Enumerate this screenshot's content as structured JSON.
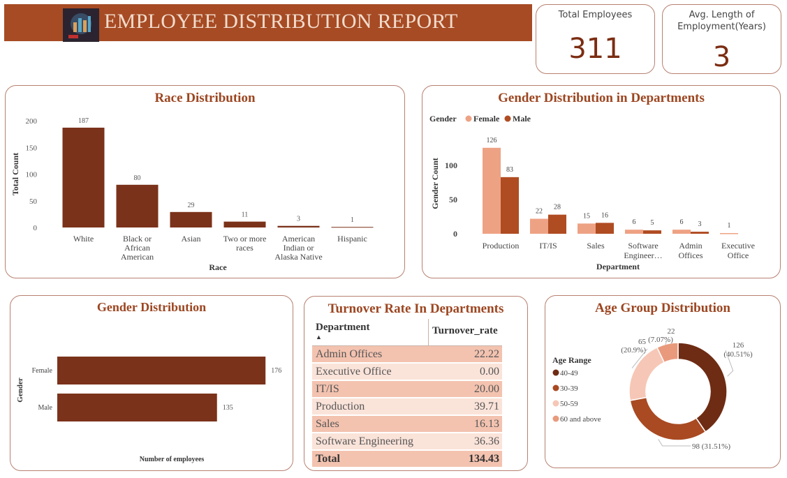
{
  "header": {
    "title": "EMPLOYEE DISTRIBUTION REPORT",
    "accent": "#a64b24"
  },
  "kpis": [
    {
      "label": "Total Employees",
      "value": "311"
    },
    {
      "label": "Avg. Length of Employment(Years)",
      "value": "3"
    }
  ],
  "chart_data": [
    {
      "type": "bar",
      "title": "Race Distribution",
      "xlabel": "Race",
      "ylabel": "Total Count",
      "categories": [
        [
          "White"
        ],
        [
          "Black or",
          "African",
          "American"
        ],
        [
          "Asian"
        ],
        [
          "Two or more",
          "races"
        ],
        [
          "American",
          "Indian or",
          "Alaska Native"
        ],
        [
          "Hispanic"
        ]
      ],
      "values": [
        187,
        80,
        29,
        11,
        3,
        1
      ],
      "ylim": [
        0,
        200
      ],
      "yticks": [
        0,
        50,
        100,
        150,
        200
      ],
      "color": "#7b321a"
    },
    {
      "type": "bar",
      "title": "Gender Distribution in Departments",
      "xlabel": "Department",
      "ylabel": "Gender Count",
      "legend_title": "Gender",
      "legend_placement": "top-left",
      "categories": [
        [
          "Production"
        ],
        [
          "IT/IS"
        ],
        [
          "Sales"
        ],
        [
          "Software",
          "Engineer…"
        ],
        [
          "Admin",
          "Offices"
        ],
        [
          "Executive",
          "Office"
        ]
      ],
      "series": [
        {
          "name": "Female",
          "color": "#eea284",
          "values": [
            126,
            22,
            15,
            6,
            6,
            1
          ]
        },
        {
          "name": "Male",
          "color": "#b04c22",
          "values": [
            83,
            28,
            16,
            5,
            3,
            null
          ]
        }
      ],
      "ylim": [
        0,
        135
      ],
      "yticks": [
        0,
        50,
        100
      ]
    },
    {
      "type": "bar",
      "orientation": "horizontal",
      "title": "Gender Distribution",
      "xlabel": "Number of employees",
      "ylabel": "Gender",
      "categories": [
        "Female",
        "Male"
      ],
      "values": [
        176,
        135
      ],
      "xlim": [
        0,
        180
      ],
      "color": "#7b321a"
    },
    {
      "type": "table",
      "title": "Turnover Rate In Departments",
      "columns": [
        "Department",
        "Turnover_rate"
      ],
      "rows": [
        [
          "Admin Offices",
          "22.22"
        ],
        [
          "Executive Office",
          "0.00"
        ],
        [
          "IT/IS",
          "20.00"
        ],
        [
          "Production",
          "39.71"
        ],
        [
          "Sales",
          "16.13"
        ],
        [
          "Software Engineering",
          "36.36"
        ]
      ],
      "total": [
        "Total",
        "134.43"
      ]
    },
    {
      "type": "pie",
      "donut": true,
      "title": "Age Group Distribution",
      "legend_title": "Age Range",
      "legend_placement": "left",
      "slices": [
        {
          "name": "40-49",
          "value": 126,
          "label": "126 (40.51%)",
          "color": "#6e2c14"
        },
        {
          "name": "30-39",
          "value": 98,
          "label": "98 (31.51%)",
          "color": "#a94a22"
        },
        {
          "name": "50-59",
          "value": 65,
          "label": "65 (20.9%)",
          "color": "#f6c7b6"
        },
        {
          "name": "60 and above",
          "value": 22,
          "label": "22 (7.07%)",
          "color": "#e99a7d"
        }
      ]
    }
  ]
}
